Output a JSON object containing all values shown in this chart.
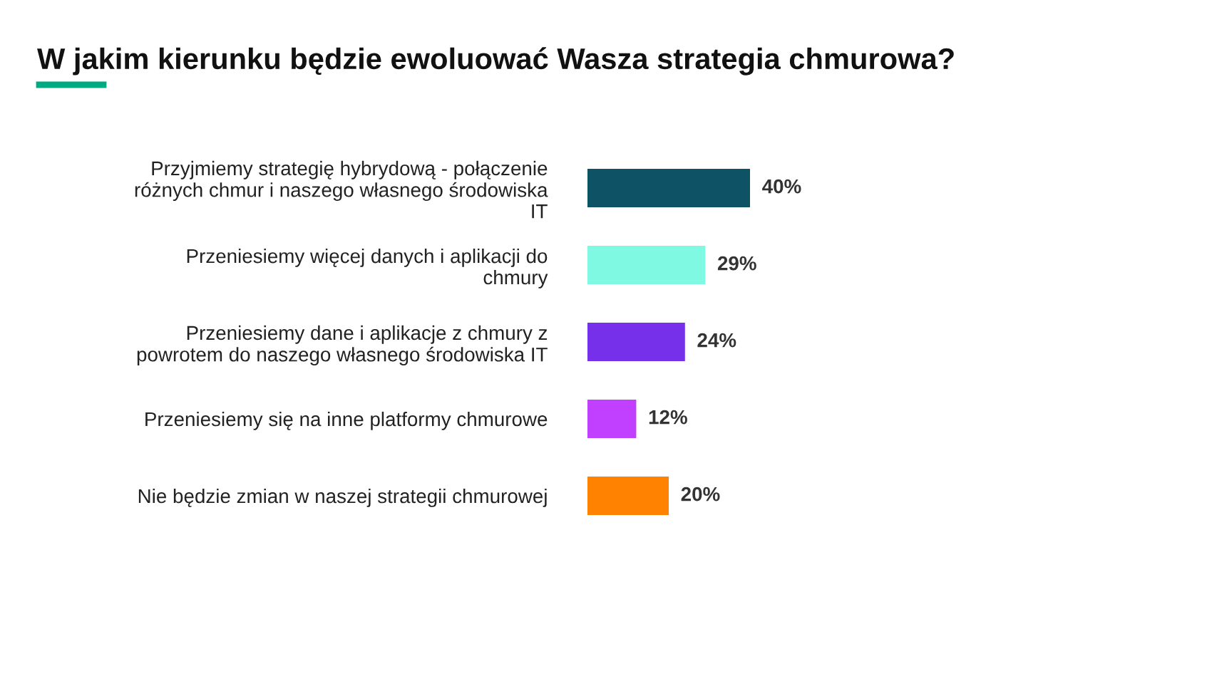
{
  "chart_data": {
    "type": "bar",
    "orientation": "horizontal",
    "title": "W jakim kierunku będzie ewoluować Wasza strategia chmurowa?",
    "categories": [
      "Przyjmiemy strategię hybrydową - połączenie\nróżnych chmur i naszego własnego środowiska\nIT",
      "Przeniesiemy więcej danych i aplikacji do\nchmury",
      "Przeniesiemy dane i aplikacje z chmury z\npowrotem do naszego własnego środowiska IT",
      "Przeniesiemy się na inne platformy chmurowe",
      "Nie będzie zmian w naszej strategii chmurowej"
    ],
    "values": [
      40,
      29,
      24,
      12,
      20
    ],
    "colors": [
      "#0d5265",
      "#7ff9e2",
      "#7630ea",
      "#c140ff",
      "#ff8300"
    ],
    "value_labels": [
      "40%",
      "29%",
      "24%",
      "12%",
      "20%"
    ],
    "grid": false,
    "legend": false
  }
}
